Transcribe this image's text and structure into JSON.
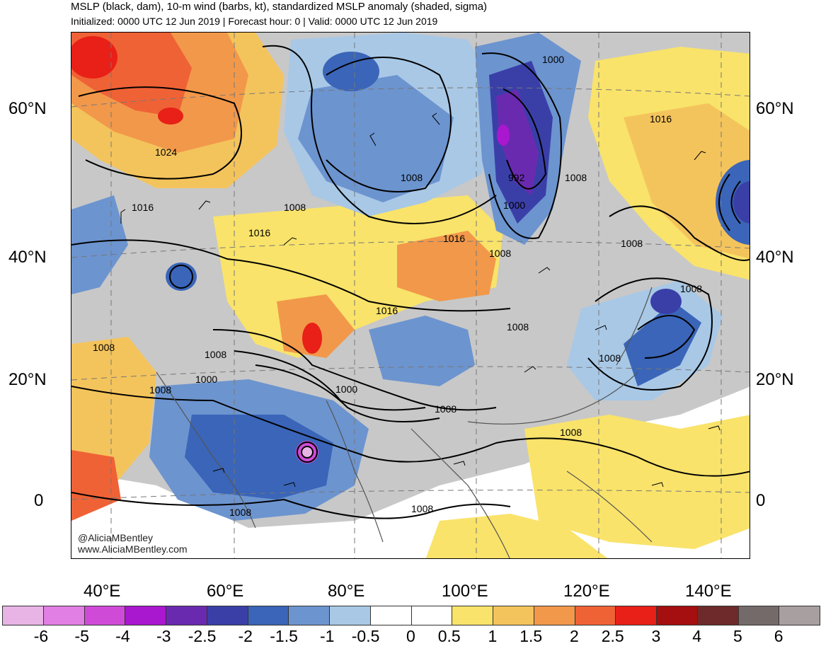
{
  "title": "MSLP (black, dam), 10-m wind (barbs, kt), standardized MSLP anomaly (shaded, sigma)",
  "subtitle": "Initialized: 0000 UTC 12 Jun 2019 | Forecast hour: 0 | Valid: 0000 UTC 12 Jun 2019",
  "lat_labels": [
    "60°N",
    "40°N",
    "20°N",
    "0"
  ],
  "lon_labels": [
    "40°E",
    "60°E",
    "80°E",
    "100°E",
    "120°E",
    "140°E"
  ],
  "contour_labels": [
    "1024",
    "1016",
    "1016",
    "1008",
    "1008",
    "1008",
    "992",
    "1000",
    "1000",
    "1016",
    "1008",
    "1016",
    "1016",
    "1008",
    "1008",
    "1008",
    "1008",
    "1008",
    "1000",
    "1000",
    "1008",
    "1008",
    "1008",
    "1008",
    "1008",
    "1008"
  ],
  "credit": {
    "twitter": "@AliciaMBentley",
    "site": "www.AliciaMBentley.com"
  },
  "colorbar": {
    "ticks": [
      "-6",
      "-5",
      "-4",
      "-3",
      "-2.5",
      "-2",
      "-1.5",
      "-1",
      "-0.5",
      "0",
      "0.5",
      "1",
      "1.5",
      "2",
      "2.5",
      "3",
      "4",
      "5",
      "6"
    ],
    "colors": [
      "#e8b4e6",
      "#e27fe4",
      "#d04ad8",
      "#a917cf",
      "#6a2ab0",
      "#3a3fa8",
      "#3a65b8",
      "#6c94cf",
      "#a8c8e6",
      "#ffffff",
      "#ffffff",
      "#f9e36a",
      "#f4c45c",
      "#f2984a",
      "#ef6236",
      "#e82017",
      "#a50f0f",
      "#6e2a2a",
      "#756a6a",
      "#a8a0a0"
    ]
  }
}
